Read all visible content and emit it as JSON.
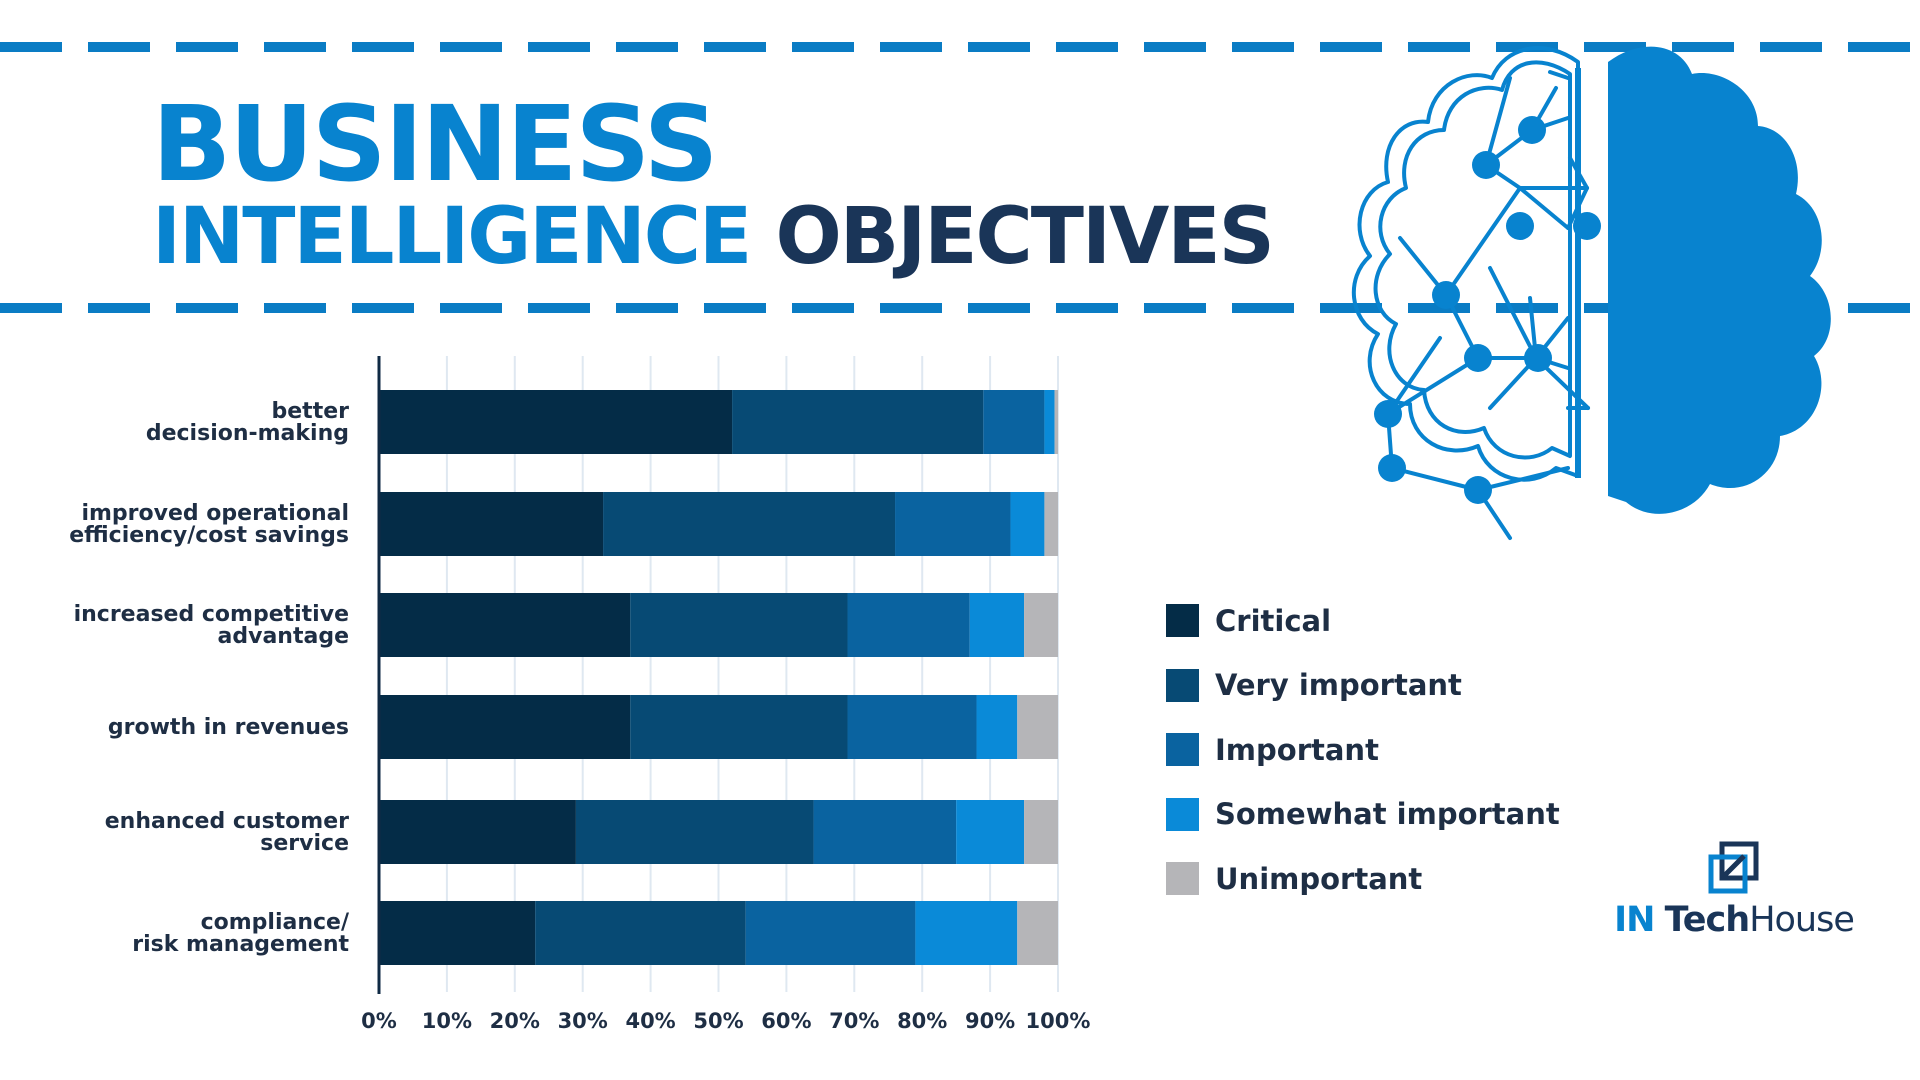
{
  "title": {
    "line1": "BUSINESS",
    "line2_part1": "INTELLIGENCE",
    "line2_part2": "OBJECTIVES"
  },
  "colors": {
    "accent_blue": "#0883cf",
    "title_dark": "#1a3558",
    "critical": "#042c47",
    "very_important": "#074a74",
    "important": "#0a63a0",
    "somewhat_important": "#0a8ad8",
    "unimportant": "#b5b5b8"
  },
  "icons": {
    "brain": "brain-network-icon",
    "logo": "intech-house-logo-icon"
  },
  "legend": [
    {
      "label": "Critical",
      "color": "#042c47"
    },
    {
      "label": "Very important",
      "color": "#074a74"
    },
    {
      "label": "Important",
      "color": "#0a63a0"
    },
    {
      "label": "Somewhat important",
      "color": "#0a8ad8"
    },
    {
      "label": "Unimportant",
      "color": "#b5b5b8"
    }
  ],
  "logo": {
    "part1": "IN",
    "part2": "Tech",
    "part3": "House"
  },
  "chart_data": {
    "type": "bar",
    "orientation": "horizontal",
    "stacked": true,
    "title": "",
    "xlabel": "",
    "ylabel": "",
    "xlim": [
      0,
      100
    ],
    "x_unit": "%",
    "grid": true,
    "legend_position": "right",
    "categories": [
      [
        "better",
        "decision-making"
      ],
      [
        "improved operational",
        "efficiency/cost savings"
      ],
      [
        "increased competitive",
        "advantage"
      ],
      [
        "growth in revenues"
      ],
      [
        "enhanced customer",
        "service"
      ],
      [
        "compliance/",
        "risk management"
      ]
    ],
    "x_ticks": [
      "0%",
      "10%",
      "20%",
      "30%",
      "40%",
      "50%",
      "60%",
      "70%",
      "80%",
      "90%",
      "100%"
    ],
    "series": [
      {
        "name": "Critical",
        "color": "#042c47",
        "values": [
          52,
          33,
          37,
          37,
          29,
          23
        ]
      },
      {
        "name": "Very important",
        "color": "#074a74",
        "values": [
          37,
          43,
          32,
          32,
          35,
          31
        ]
      },
      {
        "name": "Important",
        "color": "#0a63a0",
        "values": [
          9,
          17,
          18,
          19,
          21,
          25
        ]
      },
      {
        "name": "Somewhat important",
        "color": "#0a8ad8",
        "values": [
          1.5,
          5,
          8,
          6,
          10,
          15
        ]
      },
      {
        "name": "Unimportant",
        "color": "#b5b5b8",
        "values": [
          0.5,
          2,
          5,
          6,
          5,
          6
        ]
      }
    ]
  }
}
